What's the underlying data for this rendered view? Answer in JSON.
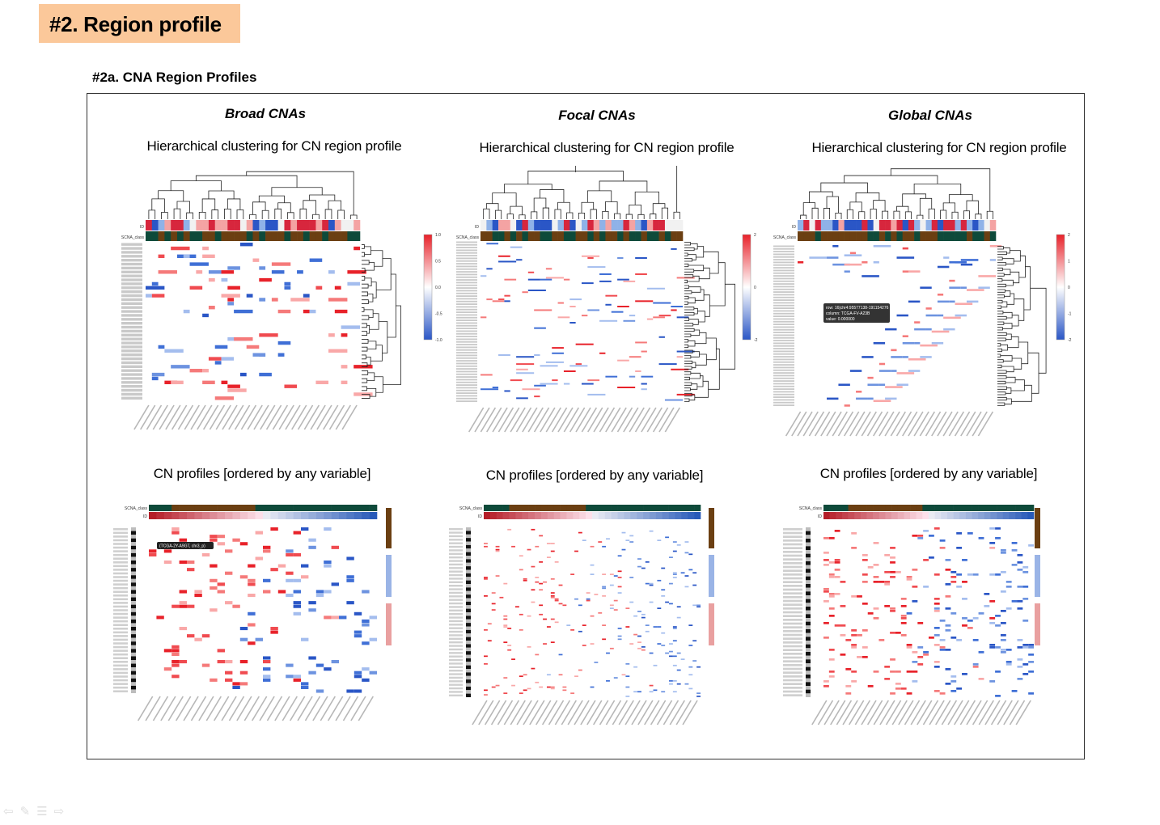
{
  "slide": {
    "title": "#2. Region profile"
  },
  "section": {
    "heading": "#2a. CNA Region Profiles"
  },
  "columns": [
    {
      "title": "Broad CNAs",
      "clustering_title": "Hierarchical clustering for CN region profile",
      "profile_title": "CN profiles [ordered by any variable]",
      "scale_ticks": [
        "1.0",
        "0.5",
        "0.0",
        "-0.5",
        "-1.0"
      ]
    },
    {
      "title": "Focal CNAs",
      "clustering_title": "Hierarchical clustering for CN region profile",
      "profile_title": "CN profiles [ordered by any variable]",
      "scale_ticks": [
        "2",
        "0",
        "-2"
      ]
    },
    {
      "title": "Global CNAs",
      "clustering_title": "Hierarchical clustering for CN region profile",
      "profile_title": "CN profiles [ordered by any variable]",
      "scale_ticks": [
        "2",
        "1",
        "0",
        "-1",
        "-2"
      ]
    }
  ],
  "heatmap_labels": {
    "id_row": "ID",
    "class_row": "SCNA_class"
  },
  "broad_tooltip": "(TCGA-2Y-A9GT, chr3_p)",
  "global_tooltip": {
    "row": "row: 16|chr4:95577138-191154276",
    "column": "column: TCGA-FV-A23B",
    "value": "value: 0.000000"
  },
  "colors": {
    "title_bg": "#fbc89a",
    "gain": "#e8222a",
    "loss": "#2a56c6",
    "class_green": "#0e4a3a",
    "class_brown": "#6b3f12"
  },
  "nav_icons": [
    "arrow-left-icon",
    "pen-icon",
    "menu-icon",
    "arrow-right-icon"
  ]
}
